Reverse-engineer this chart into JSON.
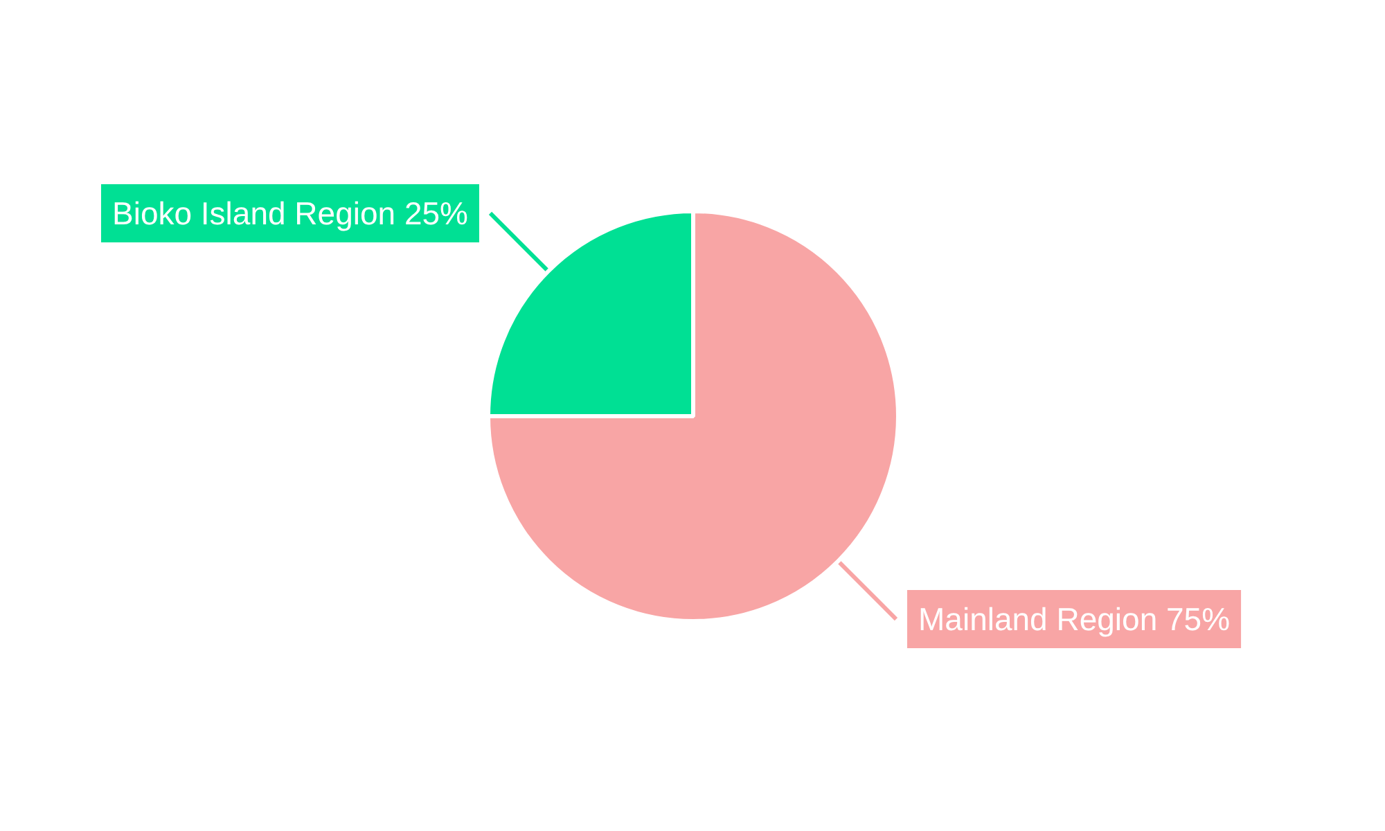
{
  "chart_data": {
    "type": "pie",
    "categories": [
      "Mainland Region",
      "Bioko Island Region"
    ],
    "values": [
      75,
      25
    ],
    "colors": [
      "#f8a5a5",
      "#00e094"
    ],
    "value_labels": [
      "75%",
      "25%"
    ]
  }
}
